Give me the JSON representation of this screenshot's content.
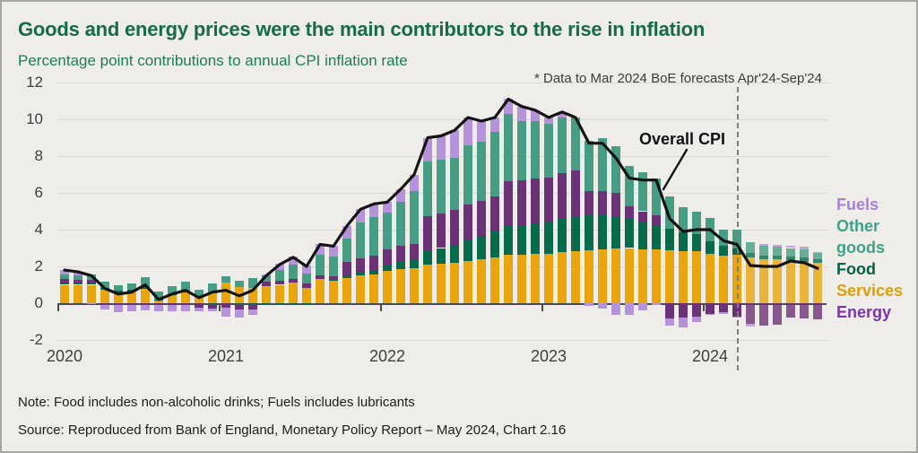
{
  "title": "Goods and energy prices were the main contributors to the rise in inflation",
  "subtitle": "Percentage point contributions to annual CPI inflation rate",
  "annotation": "* Data to Mar 2024 BoE forecasts Apr'24-Sep'24",
  "line_label": "Overall CPI",
  "note": "Note: Food includes non-alcoholic drinks; Fuels includes lubricants",
  "source": "Source: Reproduced from Bank of England, Monetary Policy Report – May 2024, Chart 2.16",
  "colors": {
    "background": "#EFEDE9",
    "title_green": "#156B4B",
    "subtitle_green": "#1F7B59",
    "cpi_line": "#141414",
    "services": "#E9A50E",
    "food": "#076A4B",
    "energy": "#6B3277",
    "other_goods": "#479C84",
    "fuels": "#B593DB",
    "forecast_divider": "#7E7E7E"
  },
  "legend": {
    "items": [
      {
        "label": "Fuels",
        "color": "#A881D2"
      },
      {
        "label": "Other goods",
        "color": "#3FA287"
      },
      {
        "label": "Food",
        "color": "#0A6045"
      },
      {
        "label": "Services",
        "color": "#DEA00A"
      },
      {
        "label": "Energy",
        "color": "#7B35A8"
      }
    ]
  },
  "chart_data": {
    "type": "bar",
    "subtype": "stacked-monthly-bars-with-line",
    "title": "Percentage point contributions to annual CPI inflation rate",
    "xlabel": "",
    "ylabel": "Percentage points",
    "ylim": [
      -2,
      12
    ],
    "yticks": [
      -2,
      0,
      2,
      4,
      6,
      8,
      10,
      12
    ],
    "grid": "horizontal",
    "legend_position": "right",
    "frequency": "monthly",
    "forecast_start_index": 51,
    "forecast_note": "Apr 2024 to Sep 2024 are BoE forecasts shown right of dashed divider",
    "year_ticks": [
      "2020",
      "2021",
      "2022",
      "2023",
      "2024"
    ],
    "months": [
      "2020-01",
      "2020-02",
      "2020-03",
      "2020-04",
      "2020-05",
      "2020-06",
      "2020-07",
      "2020-08",
      "2020-09",
      "2020-10",
      "2020-11",
      "2020-12",
      "2021-01",
      "2021-02",
      "2021-03",
      "2021-04",
      "2021-05",
      "2021-06",
      "2021-07",
      "2021-08",
      "2021-09",
      "2021-10",
      "2021-11",
      "2021-12",
      "2022-01",
      "2022-02",
      "2022-03",
      "2022-04",
      "2022-05",
      "2022-06",
      "2022-07",
      "2022-08",
      "2022-09",
      "2022-10",
      "2022-11",
      "2022-12",
      "2023-01",
      "2023-02",
      "2023-03",
      "2023-04",
      "2023-05",
      "2023-06",
      "2023-07",
      "2023-08",
      "2023-09",
      "2023-10",
      "2023-11",
      "2023-12",
      "2024-01",
      "2024-02",
      "2024-03",
      "2024-04",
      "2024-05",
      "2024-06",
      "2024-07",
      "2024-08",
      "2024-09"
    ],
    "series": [
      {
        "name": "Services",
        "color": "#E9A50E",
        "values": [
          1.0,
          1.0,
          1.0,
          0.75,
          0.6,
          0.65,
          0.8,
          0.15,
          0.45,
          0.6,
          0.4,
          0.6,
          1.1,
          0.9,
          0.85,
          0.95,
          1.0,
          1.1,
          0.85,
          1.3,
          1.2,
          1.35,
          1.5,
          1.55,
          1.75,
          1.85,
          1.9,
          2.1,
          2.15,
          2.2,
          2.3,
          2.4,
          2.5,
          2.65,
          2.65,
          2.7,
          2.7,
          2.8,
          2.85,
          2.9,
          2.95,
          3.0,
          3.0,
          2.95,
          2.95,
          2.9,
          2.85,
          2.85,
          2.7,
          2.6,
          2.65,
          2.5,
          2.4,
          2.4,
          2.3,
          2.25,
          2.2
        ]
      },
      {
        "name": "Food",
        "color": "#076A4B",
        "values": [
          0.05,
          0.05,
          0.05,
          0.1,
          0.1,
          0.1,
          0.1,
          0.05,
          0.05,
          0.05,
          0.0,
          -0.05,
          0.0,
          -0.05,
          -0.05,
          -0.05,
          -0.05,
          -0.05,
          -0.05,
          0.0,
          0.05,
          0.1,
          0.15,
          0.25,
          0.35,
          0.4,
          0.45,
          0.75,
          0.85,
          0.95,
          1.15,
          1.25,
          1.4,
          1.55,
          1.6,
          1.65,
          1.7,
          1.8,
          1.9,
          1.9,
          1.85,
          1.75,
          1.6,
          1.45,
          1.3,
          1.15,
          1.0,
          0.9,
          0.65,
          0.5,
          0.35,
          0.25,
          0.2,
          0.2,
          0.25,
          0.25,
          0.2
        ]
      },
      {
        "name": "Energy",
        "color": "#6B3277",
        "values": [
          0.25,
          0.2,
          0.2,
          -0.1,
          -0.1,
          -0.1,
          -0.1,
          -0.1,
          -0.1,
          -0.1,
          -0.25,
          -0.25,
          -0.25,
          -0.3,
          -0.3,
          0.2,
          0.2,
          0.2,
          0.2,
          0.2,
          0.2,
          0.8,
          0.8,
          0.8,
          0.85,
          0.85,
          0.85,
          1.9,
          1.9,
          1.9,
          1.9,
          1.9,
          1.9,
          2.45,
          2.45,
          2.45,
          2.45,
          2.45,
          2.45,
          1.3,
          1.3,
          1.25,
          0.65,
          0.6,
          0.55,
          -0.85,
          -0.8,
          -0.75,
          -0.6,
          -0.5,
          -0.75,
          -1.1,
          -1.2,
          -1.15,
          -0.8,
          -0.85,
          -0.9
        ]
      },
      {
        "name": "Other goods",
        "color": "#479C84",
        "values": [
          0.25,
          0.25,
          0.3,
          0.3,
          0.3,
          0.3,
          0.5,
          0.45,
          0.45,
          0.5,
          0.35,
          0.45,
          0.35,
          0.3,
          0.5,
          0.35,
          0.6,
          0.8,
          0.55,
          1.15,
          1.1,
          1.25,
          1.95,
          2.1,
          2.0,
          2.4,
          2.9,
          2.95,
          2.9,
          2.85,
          3.25,
          3.25,
          3.5,
          3.65,
          3.2,
          3.1,
          2.9,
          3.05,
          2.9,
          2.75,
          2.9,
          2.55,
          2.2,
          2.1,
          2.0,
          1.75,
          1.35,
          1.25,
          1.3,
          0.9,
          1.0,
          0.55,
          0.5,
          0.45,
          0.45,
          0.45,
          0.35
        ]
      },
      {
        "name": "Fuels",
        "color": "#B593DB",
        "values": [
          0.25,
          0.2,
          -0.05,
          -0.25,
          -0.4,
          -0.35,
          -0.3,
          -0.35,
          -0.35,
          -0.35,
          -0.2,
          -0.15,
          -0.5,
          -0.45,
          -0.3,
          0.05,
          0.35,
          0.45,
          0.45,
          0.55,
          0.55,
          0.7,
          0.7,
          0.7,
          0.55,
          0.7,
          0.9,
          1.3,
          1.3,
          1.5,
          1.5,
          1.1,
          0.8,
          0.8,
          0.8,
          0.6,
          0.35,
          0.3,
          0.0,
          -0.15,
          -0.3,
          -0.65,
          -0.65,
          -0.4,
          -0.1,
          -0.35,
          -0.5,
          -0.25,
          -0.05,
          -0.1,
          -0.05,
          -0.15,
          0.1,
          0.1,
          0.1,
          0.1,
          0.05
        ]
      }
    ],
    "line": {
      "name": "Overall CPI",
      "color": "#141414",
      "values": [
        1.8,
        1.7,
        1.5,
        0.8,
        0.5,
        0.6,
        1.0,
        0.2,
        0.5,
        0.7,
        0.3,
        0.6,
        0.7,
        0.4,
        0.7,
        1.5,
        2.1,
        2.5,
        2.0,
        3.2,
        3.1,
        4.2,
        5.1,
        5.4,
        5.5,
        6.2,
        7.0,
        9.0,
        9.1,
        9.4,
        10.1,
        9.9,
        10.1,
        11.1,
        10.7,
        10.5,
        10.1,
        10.4,
        10.1,
        8.7,
        8.7,
        7.9,
        6.8,
        6.7,
        6.7,
        4.6,
        3.9,
        4.0,
        4.0,
        3.4,
        3.2,
        2.05,
        2.0,
        2.0,
        2.3,
        2.2,
        1.9
      ]
    }
  }
}
